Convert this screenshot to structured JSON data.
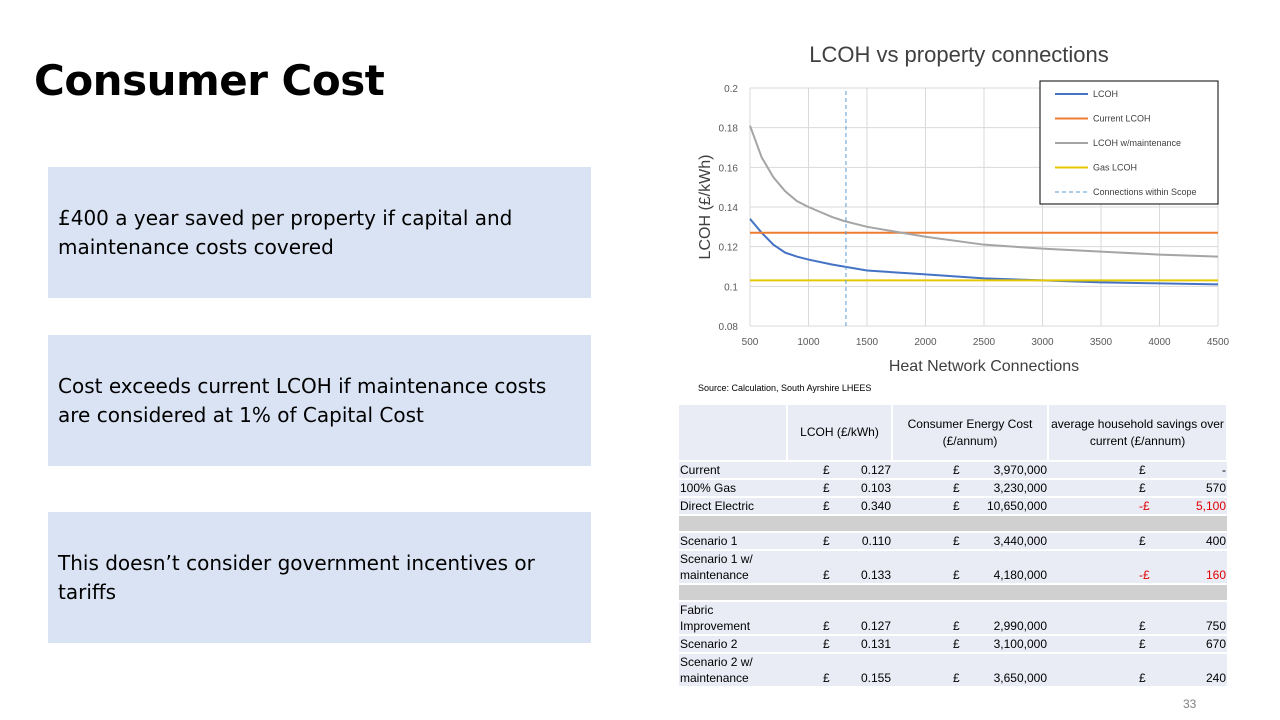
{
  "slide": {
    "title": "Consumer Cost",
    "boxes": [
      "£400 a year saved per property if capital and maintenance costs covered",
      "Cost exceeds current LCOH if maintenance costs are considered at 1% of Capital Cost",
      "This doesn’t consider government incentives or tariffs"
    ],
    "source": "Source: Calculation, South Ayrshire LHEES",
    "page_number": "33"
  },
  "chart_data": {
    "type": "line",
    "title": "LCOH vs property connections",
    "xlabel": "Heat Network Connections",
    "ylabel": "LCOH (£/kWh)",
    "xlim": [
      500,
      4500
    ],
    "ylim": [
      0.08,
      0.2
    ],
    "xticks": [
      "500",
      "1000",
      "1500",
      "2000",
      "2500",
      "3000",
      "3500",
      "4000",
      "4500"
    ],
    "yticks": [
      "0.08",
      "0.1",
      "0.12",
      "0.14",
      "0.16",
      "0.18",
      "0.2"
    ],
    "grid": true,
    "legend_position": "top-right",
    "series": [
      {
        "name": "LCOH",
        "color": "#4472c4",
        "style": "solid",
        "x": [
          500,
          600,
          700,
          800,
          900,
          1000,
          1200,
          1300,
          1500,
          2000,
          2500,
          3000,
          3500,
          4000,
          4500
        ],
        "y": [
          0.134,
          0.127,
          0.121,
          0.117,
          0.115,
          0.1135,
          0.111,
          0.11,
          0.108,
          0.106,
          0.104,
          0.103,
          0.102,
          0.1015,
          0.101
        ]
      },
      {
        "name": "Current LCOH",
        "color": "#ed7d31",
        "style": "solid",
        "x": [
          500,
          4500
        ],
        "y": [
          0.127,
          0.127
        ]
      },
      {
        "name": "LCOH w/maintenance",
        "color": "#a5a5a5",
        "style": "solid",
        "x": [
          500,
          600,
          700,
          800,
          900,
          1000,
          1200,
          1300,
          1500,
          2000,
          2500,
          3000,
          3500,
          4000,
          4500
        ],
        "y": [
          0.181,
          0.165,
          0.155,
          0.148,
          0.143,
          0.14,
          0.135,
          0.133,
          0.13,
          0.125,
          0.121,
          0.119,
          0.1175,
          0.116,
          0.115
        ]
      },
      {
        "name": "Gas LCOH",
        "color": "#e6c800",
        "style": "solid",
        "x": [
          500,
          4500
        ],
        "y": [
          0.103,
          0.103
        ]
      },
      {
        "name": "Connections within Scope",
        "color": "#5b9bd5",
        "style": "dashed",
        "x": [
          1320,
          1320
        ],
        "y": [
          0.08,
          0.2
        ]
      }
    ]
  },
  "table": {
    "headers": [
      "",
      "LCOH  (£/kWh)",
      "Consumer Energy Cost (£/annum)",
      "average household savings over current (£/annum)"
    ],
    "rows": [
      {
        "label": "Current",
        "c1": "£",
        "v1": "0.127",
        "c2": "£",
        "v2": "3,970,000",
        "c3": "£",
        "v3": "-",
        "neg": false,
        "sep": false
      },
      {
        "label": "100% Gas",
        "c1": "£",
        "v1": "0.103",
        "c2": "£",
        "v2": "3,230,000",
        "c3": "£",
        "v3": "570",
        "neg": false,
        "sep": false
      },
      {
        "label": "Direct Electric",
        "c1": "£",
        "v1": "0.340",
        "c2": "£",
        "v2": "10,650,000",
        "c3": "-£",
        "v3": "5,100",
        "neg": true,
        "sep": false
      },
      {
        "sep": true
      },
      {
        "label": "Scenario 1",
        "c1": "£",
        "v1": "0.110",
        "c2": "£",
        "v2": "3,440,000",
        "c3": "£",
        "v3": "400",
        "neg": false,
        "sep": false
      },
      {
        "label": "Scenario 1 w/ maintenance",
        "c1": "£",
        "v1": "0.133",
        "c2": "£",
        "v2": "4,180,000",
        "c3": "-£",
        "v3": "160",
        "neg": true,
        "sep": false
      },
      {
        "sep": true
      },
      {
        "label": "Fabric Improvement",
        "c1": "£",
        "v1": "0.127",
        "c2": "£",
        "v2": "2,990,000",
        "c3": "£",
        "v3": "750",
        "neg": false,
        "sep": false
      },
      {
        "label": "Scenario 2",
        "c1": "£",
        "v1": "0.131",
        "c2": "£",
        "v2": "3,100,000",
        "c3": "£",
        "v3": "670",
        "neg": false,
        "sep": false
      },
      {
        "label": "Scenario 2 w/ maintenance",
        "c1": "£",
        "v1": "0.155",
        "c2": "£",
        "v2": "3,650,000",
        "c3": "£",
        "v3": "240",
        "neg": false,
        "sep": false
      }
    ]
  }
}
